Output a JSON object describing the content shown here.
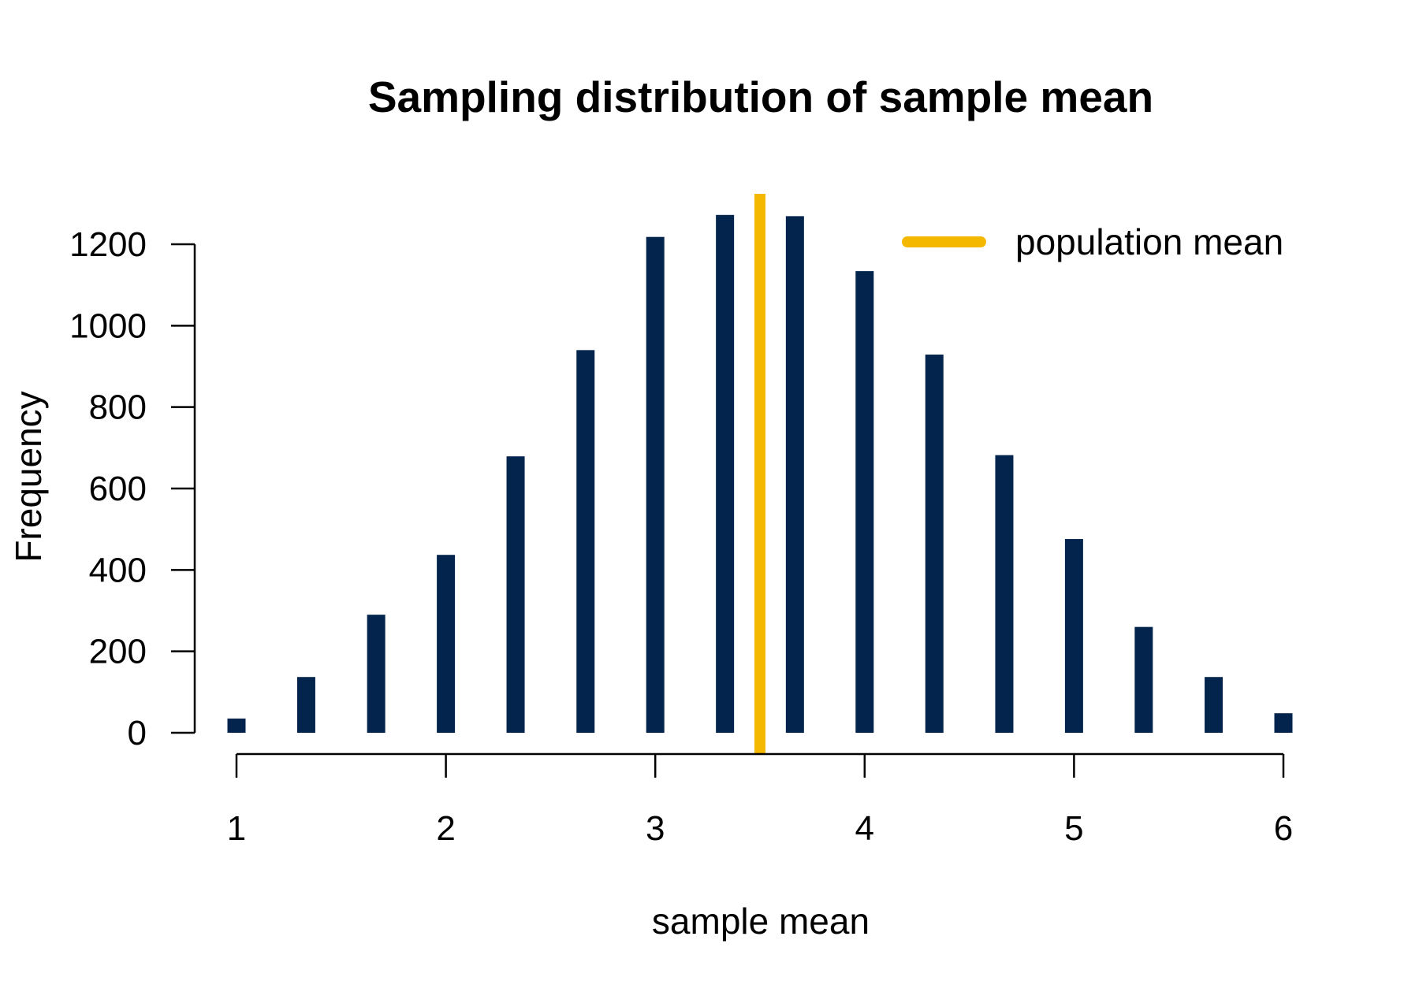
{
  "chart_data": {
    "type": "bar",
    "title": "Sampling distribution of sample mean",
    "xlabel": "sample mean",
    "ylabel": "Frequency",
    "bar_color": "#03244d",
    "x": [
      1.0,
      1.333,
      1.667,
      2.0,
      2.333,
      2.667,
      3.0,
      3.333,
      3.667,
      4.0,
      4.333,
      4.667,
      5.0,
      5.333,
      5.667,
      6.0
    ],
    "values": [
      35,
      137,
      290,
      437,
      679,
      940,
      1218,
      1272,
      1269,
      1134,
      929,
      682,
      476,
      260,
      137,
      48
    ],
    "xlim": [
      1,
      6
    ],
    "ylim": [
      0,
      1200
    ],
    "x_ticks": [
      1,
      2,
      3,
      4,
      5,
      6
    ],
    "x_tick_labels": [
      "1",
      "2",
      "3",
      "4",
      "5",
      "6"
    ],
    "y_ticks": [
      0,
      200,
      400,
      600,
      800,
      1000,
      1200
    ],
    "y_tick_labels": [
      "0",
      "200",
      "400",
      "600",
      "800",
      "1000",
      "1200"
    ],
    "grid": false,
    "reference_line": {
      "x": 3.5,
      "color": "#f5b800",
      "label": "population mean"
    },
    "legend": {
      "position": "top-right",
      "entries": [
        {
          "label": "population mean",
          "color": "#f5b800"
        }
      ]
    }
  }
}
